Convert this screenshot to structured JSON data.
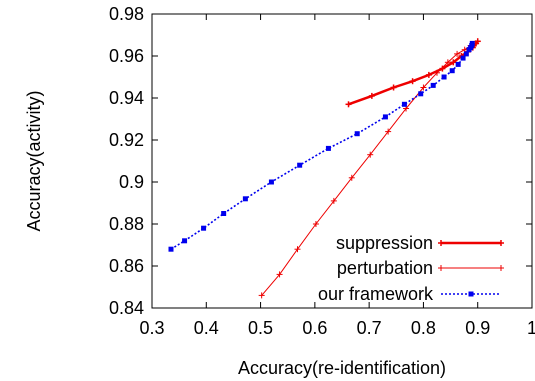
{
  "chart_data": {
    "type": "line",
    "title": "",
    "xlabel": "Accuracy(re-identification)",
    "ylabel": "Accuracy(activity)",
    "xlim": [
      0.3,
      1.0
    ],
    "ylim": [
      0.84,
      0.98
    ],
    "xticks": [
      "0.3",
      "0.4",
      "0.5",
      "0.6",
      "0.7",
      "0.8",
      "0.9",
      "1"
    ],
    "yticks": [
      "0.84",
      "0.86",
      "0.88",
      "0.9",
      "0.92",
      "0.94",
      "0.96",
      "0.98"
    ],
    "grid": false,
    "legend_position": "bottom-right",
    "series": [
      {
        "name": "suppression",
        "color": "#ee0000",
        "line_style": "solid-thick",
        "marker": "plus",
        "x": [
          0.662,
          0.705,
          0.745,
          0.78,
          0.81,
          0.835,
          0.855,
          0.87,
          0.882,
          0.891,
          0.897,
          0.9
        ],
        "y": [
          0.937,
          0.941,
          0.945,
          0.948,
          0.951,
          0.954,
          0.957,
          0.96,
          0.962,
          0.964,
          0.966,
          0.967
        ]
      },
      {
        "name": "perturbation",
        "color": "#ee0000",
        "line_style": "solid-thin",
        "marker": "plus",
        "x": [
          0.502,
          0.535,
          0.568,
          0.602,
          0.635,
          0.668,
          0.702,
          0.735,
          0.768,
          0.8,
          0.825,
          0.845,
          0.862,
          0.876,
          0.887,
          0.896,
          0.9
        ],
        "y": [
          0.846,
          0.856,
          0.868,
          0.88,
          0.891,
          0.902,
          0.913,
          0.924,
          0.935,
          0.945,
          0.952,
          0.957,
          0.961,
          0.963,
          0.965,
          0.966,
          0.967
        ]
      },
      {
        "name": "our framework",
        "color": "#0000ee",
        "line_style": "dotted",
        "marker": "square",
        "x": [
          0.335,
          0.36,
          0.395,
          0.432,
          0.472,
          0.52,
          0.572,
          0.625,
          0.678,
          0.73,
          0.765,
          0.795,
          0.818,
          0.838,
          0.853,
          0.864,
          0.873,
          0.879,
          0.884,
          0.887,
          0.889,
          0.89
        ],
        "y": [
          0.868,
          0.872,
          0.878,
          0.885,
          0.892,
          0.9,
          0.908,
          0.916,
          0.923,
          0.931,
          0.937,
          0.942,
          0.946,
          0.95,
          0.953,
          0.956,
          0.959,
          0.961,
          0.963,
          0.964,
          0.965,
          0.966
        ]
      }
    ]
  }
}
